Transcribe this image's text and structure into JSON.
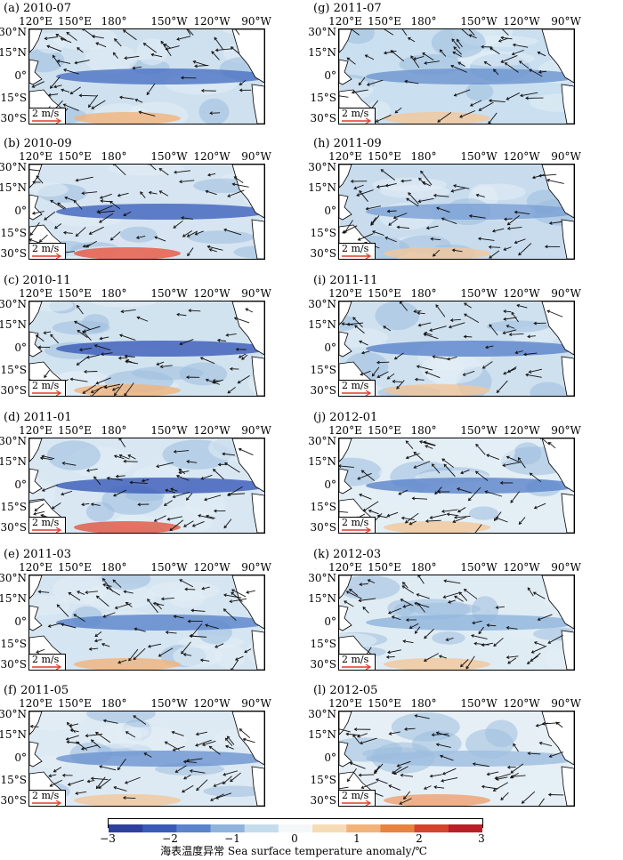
{
  "panels": [
    {
      "label": "(a) 2010-07",
      "tint": "#cfe1ef",
      "belt": "#4a72c4",
      "warm": "#f2b37a"
    },
    {
      "label": "(g) 2011-07",
      "tint": "#cadff0",
      "belt": "#6d94d0",
      "warm": "#f3c79a"
    },
    {
      "label": "(b) 2010-09",
      "tint": "#d6e5f1",
      "belt": "#3f62bd",
      "warm": "#e8553f"
    },
    {
      "label": "(h) 2011-09",
      "tint": "#c8dcee",
      "belt": "#7aa0d5",
      "warm": "#f3c79a"
    },
    {
      "label": "(c) 2010-11",
      "tint": "#d2e3f0",
      "belt": "#3a5ab8",
      "warm": "#f2b37a"
    },
    {
      "label": "(i) 2011-11",
      "tint": "#cfe1ef",
      "belt": "#5a83cb",
      "warm": "#f3c79a"
    },
    {
      "label": "(d) 2011-01",
      "tint": "#d8e7f2",
      "belt": "#3a5ab8",
      "warm": "#e4553e"
    },
    {
      "label": "(j) 2012-01",
      "tint": "#e3eef5",
      "belt": "#5a83cb",
      "warm": "#f3c79a"
    },
    {
      "label": "(e) 2011-03",
      "tint": "#d5e5f1",
      "belt": "#5a83cb",
      "warm": "#f2b37a"
    },
    {
      "label": "(k) 2012-03",
      "tint": "#e0ecf4",
      "belt": "#8fb4dc",
      "warm": "#f3c79a"
    },
    {
      "label": "(f) 2011-05",
      "tint": "#dde9f3",
      "belt": "#6d94d0",
      "warm": "#f3c79a"
    },
    {
      "label": "(l) 2012-05",
      "tint": "#e6eff5",
      "belt": "#9dbddf",
      "warm": "#f0a070"
    }
  ],
  "lon_labels": [
    "120°E",
    "150°E",
    "180°",
    "150°W",
    "120°W",
    "90°W"
  ],
  "lat_labels": [
    "30°N",
    "15°N",
    "0°",
    "15°S",
    "30°S"
  ],
  "reference_vector": "2 m/s",
  "colorbar": {
    "ticks": [
      "−3",
      "−2",
      "−1",
      "0",
      "1",
      "2",
      "3"
    ],
    "range": [
      -3,
      3
    ],
    "colors": [
      "#2e3f9e",
      "#3a5ab8",
      "#5a83cb",
      "#8fb4dc",
      "#c5dced",
      "#f3f7f8",
      "#f6dcb6",
      "#f2b37a",
      "#e8823f",
      "#d4432e",
      "#b81f26"
    ],
    "title": "海表温度异常 Sea surface temperature anomaly/℃"
  },
  "colors": {
    "land": "#ffffff",
    "arrow": "#111111",
    "reference_arrow": "#e03a2b"
  }
}
